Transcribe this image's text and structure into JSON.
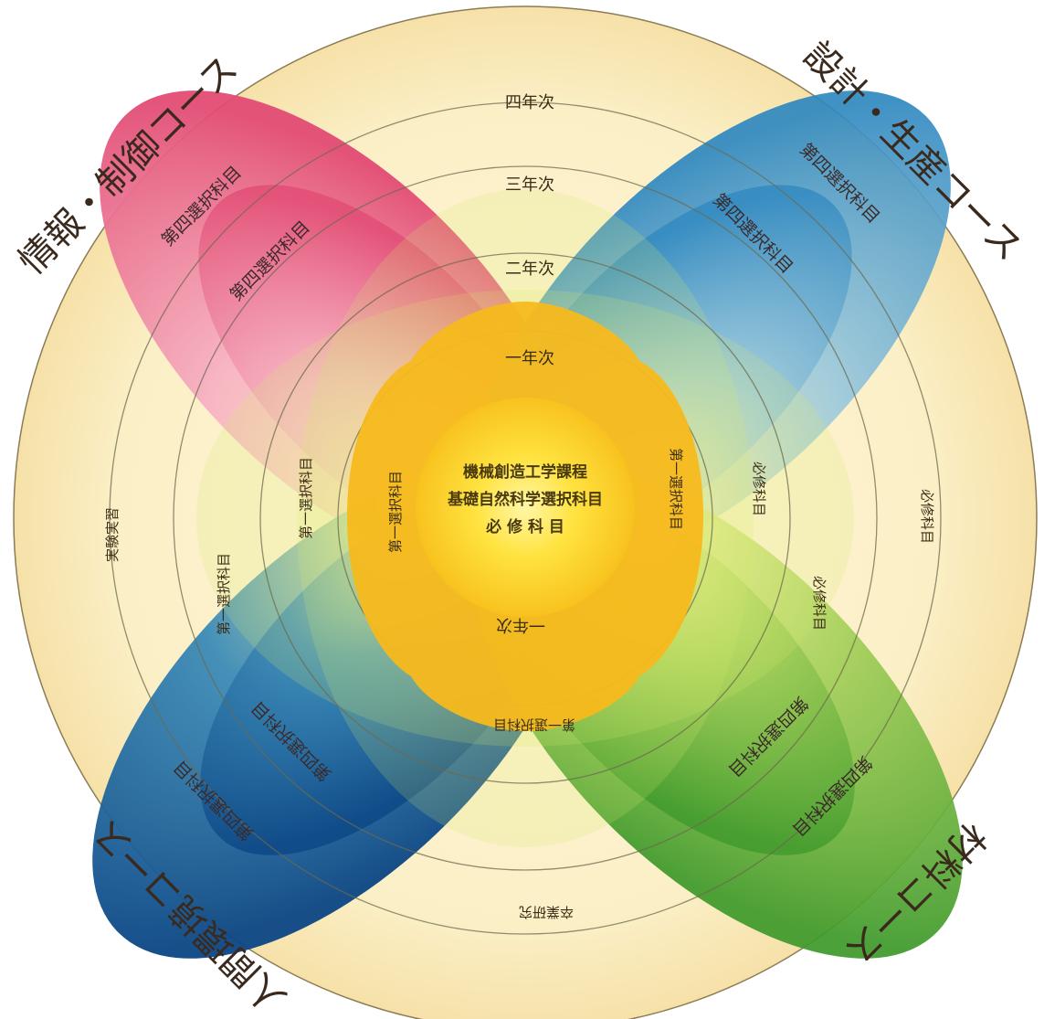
{
  "center": {
    "line1": "機械創造工学課程",
    "line2": "基礎自然科学選択科目",
    "line3": "必 修 科 目"
  },
  "years": {
    "y1": "一年次",
    "y2": "二年次",
    "y3": "三年次",
    "y4": "四年次",
    "y1_bottom": "一年次"
  },
  "courses": {
    "top_left": "情報・制御コース",
    "top_right": "設計・生産コース",
    "bottom_left": "人間環境コース",
    "bottom_right": "材料コース"
  },
  "petal_labels": {
    "tl_outer": "第四選択科目",
    "tl_inner": "第四選択科目",
    "tr_outer": "第四選択科目",
    "tr_inner": "第四選択科目",
    "bl_outer": "第四選択科目",
    "bl_inner": "第四選択科目",
    "br_outer": "第四選択科目",
    "br_inner": "第四選択科目"
  },
  "inner_labels": {
    "left": "第一選択科目",
    "right": "第一選択科目",
    "bottom": "第一選択科目",
    "left2": "第一選択科目",
    "bl2": "第一選択科目"
  },
  "side_labels": {
    "left": "実験実習",
    "bottom": "卒業研究",
    "right": "必修科目",
    "right2": "必修科目",
    "right3": "必修科目"
  },
  "colors": {
    "outer_bg": "#f6e6b4",
    "pink": "#e4527a",
    "blue_light": "#3f98c9",
    "blue_dark": "#0d4e8d",
    "green": "#4ea02e",
    "yellow_core": "#ffe23a",
    "orange": "#f7b81c"
  }
}
